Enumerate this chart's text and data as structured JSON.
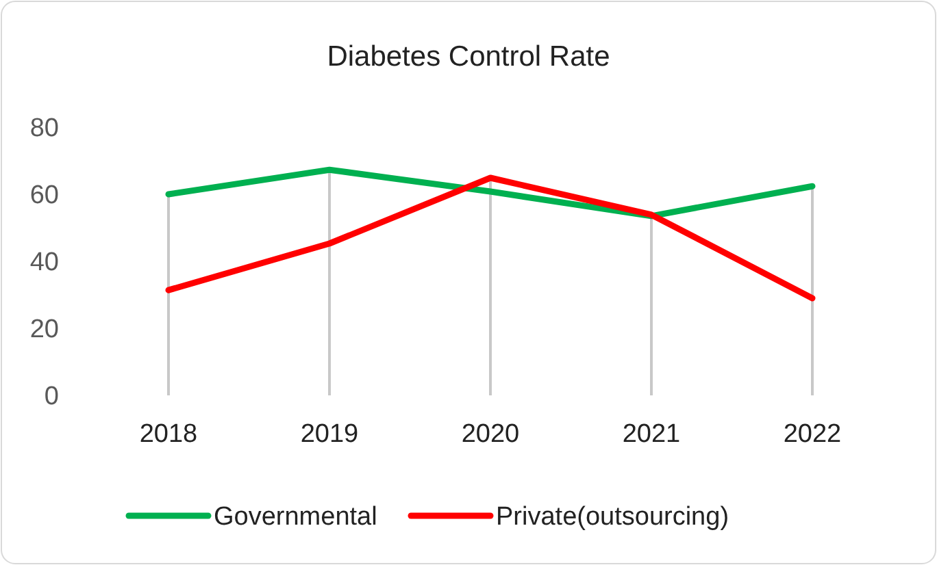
{
  "chart_data": {
    "type": "line",
    "title": "Diabetes Control Rate",
    "categories": [
      "2018",
      "2019",
      "2020",
      "2021",
      "2022"
    ],
    "series": [
      {
        "name": "Governmental",
        "color": "#00b050",
        "values": [
          60,
          67.3,
          60.8,
          53.5,
          62.4
        ]
      },
      {
        "name": "Private(outsourcing)",
        "color": "#ff0000",
        "values": [
          31.4,
          45.3,
          64.9,
          53.9,
          29
        ]
      }
    ],
    "ylim": [
      0,
      80
    ],
    "yticks": [
      0,
      20,
      40,
      60,
      80
    ],
    "grid": "x",
    "legend": "bottom",
    "marker": "none",
    "line_style": "solid"
  }
}
